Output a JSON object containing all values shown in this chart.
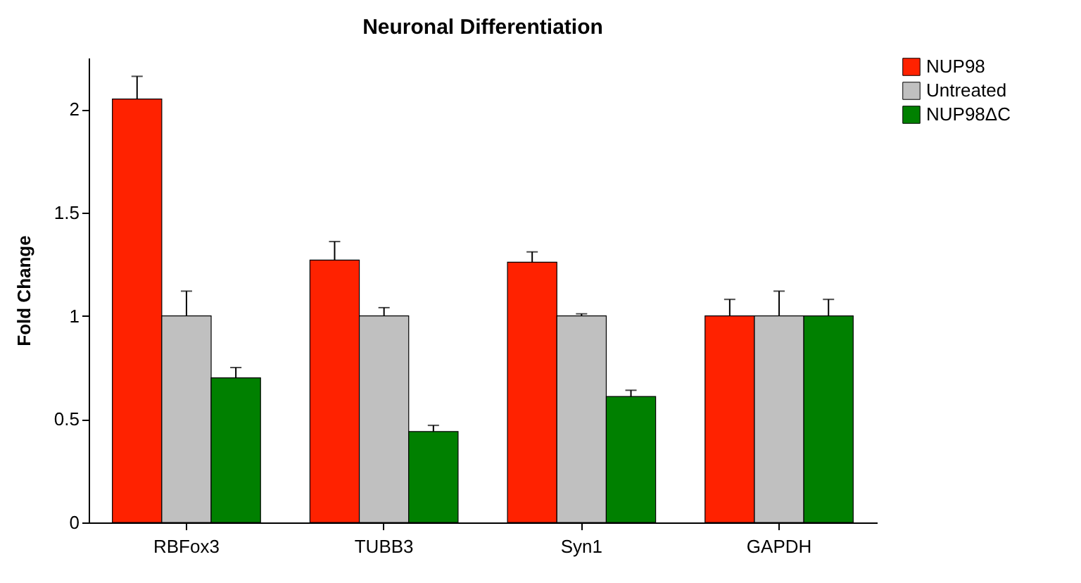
{
  "chart_data": {
    "type": "bar",
    "title": "Neuronal Differentiation",
    "ylabel": "Fold Change",
    "categories": [
      "RBFox3",
      "TUBB3",
      "Syn1",
      "GAPDH"
    ],
    "series": [
      {
        "name": "NUP98",
        "color": "#ff2200",
        "values": [
          2.05,
          1.27,
          1.26,
          1.0
        ],
        "errors": [
          [
            2.05,
            2.16
          ],
          [
            1.27,
            1.36
          ],
          [
            1.26,
            1.31
          ],
          [
            1.0,
            1.08
          ]
        ]
      },
      {
        "name": "Untreated",
        "color": "#c0c0c0",
        "values": [
          1.0,
          1.0,
          1.0,
          1.0
        ],
        "errors": [
          [
            1.0,
            1.12
          ],
          [
            1.0,
            1.04
          ],
          [
            1.0,
            1.01
          ],
          [
            1.0,
            1.12
          ]
        ]
      },
      {
        "name": "NUP98ΔC",
        "color": "#008000",
        "values": [
          0.7,
          0.44,
          0.61,
          1.0
        ],
        "errors": [
          [
            0.7,
            0.75
          ],
          [
            0.44,
            0.47
          ],
          [
            0.61,
            0.64
          ],
          [
            1.0,
            1.08
          ]
        ]
      }
    ],
    "ylim": [
      0,
      2.25
    ],
    "yticks": [
      0,
      0.5,
      1,
      1.5,
      2
    ],
    "grid": false,
    "legend": "right"
  }
}
